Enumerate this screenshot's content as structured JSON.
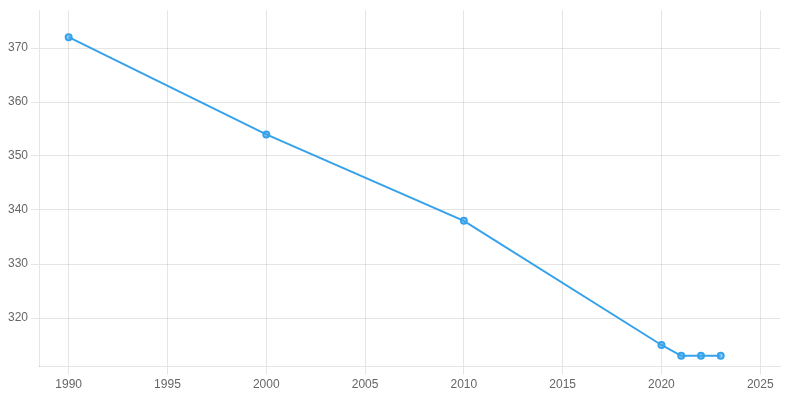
{
  "chart_data": {
    "type": "line",
    "x": [
      1990,
      2000,
      2010,
      2020,
      2021,
      2022,
      2023
    ],
    "values": [
      372,
      354,
      338,
      315,
      313,
      313,
      313
    ],
    "marker": "circle",
    "xlim": [
      1988.5,
      2026
    ],
    "ylim": [
      311,
      377
    ],
    "xticks": [
      1990,
      1995,
      2000,
      2005,
      2010,
      2015,
      2020,
      2025
    ],
    "yticks": [
      320,
      330,
      340,
      350,
      360,
      370
    ],
    "grid": true
  }
}
